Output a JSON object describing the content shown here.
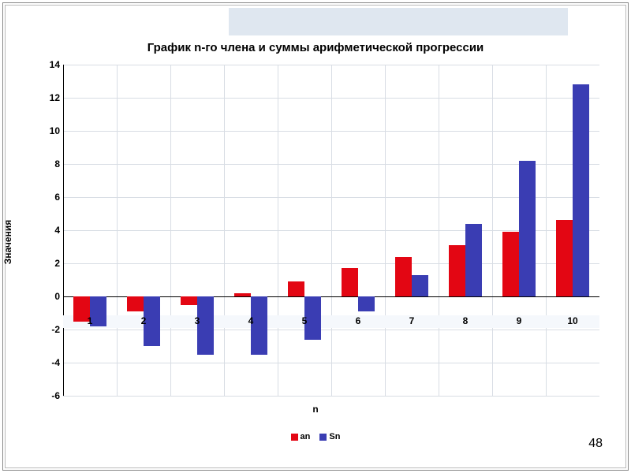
{
  "page_number": "48",
  "top_band_color": "#dfe7f0",
  "chart": {
    "type": "bar",
    "title": "График n-го члена и суммы арифметической прогрессии",
    "title_fontsize": 15,
    "xlabel": "n",
    "ylabel": "Значения",
    "label_fontsize": 12,
    "tick_fontsize": 12,
    "categories": [
      "1",
      "2",
      "3",
      "4",
      "5",
      "6",
      "7",
      "8",
      "9",
      "10"
    ],
    "series": [
      {
        "name": "an",
        "color": "#e30613",
        "values": [
          -1.5,
          -0.9,
          -0.5,
          0.2,
          0.9,
          1.7,
          2.4,
          3.1,
          3.9,
          4.6
        ]
      },
      {
        "name": "Sn",
        "color": "#3a3db3",
        "values": [
          -1.8,
          -3.0,
          -3.5,
          -3.5,
          -2.6,
          -0.9,
          1.3,
          4.4,
          8.2,
          12.8
        ]
      }
    ],
    "ylim": [
      -6,
      14
    ],
    "ytick_step": 2,
    "background_color": "#ffffff",
    "grid_color": "#d8dde4",
    "xtick_band_color": "#f5f8fc",
    "axis_color": "#000000",
    "bar_group_width": 0.62,
    "tick_fontweight": "bold"
  }
}
